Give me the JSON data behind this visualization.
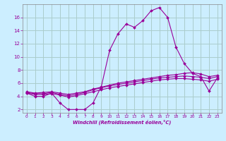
{
  "xlabel": "Windchill (Refroidissement éolien,°C)",
  "background_color": "#cceeff",
  "grid_color": "#aacccc",
  "line_color": "#990099",
  "xlim": [
    -0.5,
    23.5
  ],
  "ylim": [
    1.5,
    18.0
  ],
  "xticks": [
    0,
    1,
    2,
    3,
    4,
    5,
    6,
    7,
    8,
    9,
    10,
    11,
    12,
    13,
    14,
    15,
    16,
    17,
    18,
    19,
    20,
    21,
    22,
    23
  ],
  "yticks": [
    2,
    4,
    6,
    8,
    10,
    12,
    14,
    16
  ],
  "series": [
    {
      "x": [
        0,
        1,
        2,
        3,
        4,
        5,
        6,
        7,
        8,
        9,
        10,
        11,
        12,
        13,
        14,
        15,
        16,
        17,
        18,
        19,
        20,
        21,
        22,
        23
      ],
      "y": [
        4.5,
        4.0,
        4.0,
        4.5,
        3.0,
        2.0,
        2.0,
        2.0,
        3.0,
        5.5,
        11.0,
        13.5,
        15.0,
        14.5,
        15.5,
        17.0,
        17.5,
        16.0,
        11.5,
        9.0,
        7.5,
        7.0,
        4.8,
        6.8
      ]
    },
    {
      "x": [
        0,
        1,
        2,
        3,
        4,
        5,
        6,
        7,
        8,
        9,
        10,
        11,
        12,
        13,
        14,
        15,
        16,
        17,
        18,
        19,
        20,
        21,
        22,
        23
      ],
      "y": [
        4.5,
        4.3,
        4.3,
        4.4,
        4.2,
        3.9,
        4.1,
        4.4,
        4.7,
        5.0,
        5.3,
        5.5,
        5.7,
        5.9,
        6.1,
        6.3,
        6.5,
        6.6,
        6.7,
        6.7,
        6.6,
        6.5,
        6.3,
        6.6
      ]
    },
    {
      "x": [
        0,
        1,
        2,
        3,
        4,
        5,
        6,
        7,
        8,
        9,
        10,
        11,
        12,
        13,
        14,
        15,
        16,
        17,
        18,
        19,
        20,
        21,
        22,
        23
      ],
      "y": [
        4.6,
        4.4,
        4.4,
        4.6,
        4.3,
        4.1,
        4.3,
        4.6,
        5.0,
        5.3,
        5.6,
        5.8,
        6.0,
        6.2,
        6.4,
        6.6,
        6.8,
        6.9,
        7.0,
        7.1,
        7.0,
        6.9,
        6.7,
        7.0
      ]
    },
    {
      "x": [
        0,
        1,
        2,
        3,
        4,
        5,
        6,
        7,
        8,
        9,
        10,
        11,
        12,
        13,
        14,
        15,
        16,
        17,
        18,
        19,
        20,
        21,
        22,
        23
      ],
      "y": [
        4.7,
        4.5,
        4.6,
        4.7,
        4.5,
        4.3,
        4.5,
        4.7,
        5.1,
        5.4,
        5.7,
        6.0,
        6.2,
        6.4,
        6.6,
        6.8,
        7.0,
        7.2,
        7.3,
        7.5,
        7.6,
        7.4,
        7.0,
        7.2
      ]
    }
  ]
}
